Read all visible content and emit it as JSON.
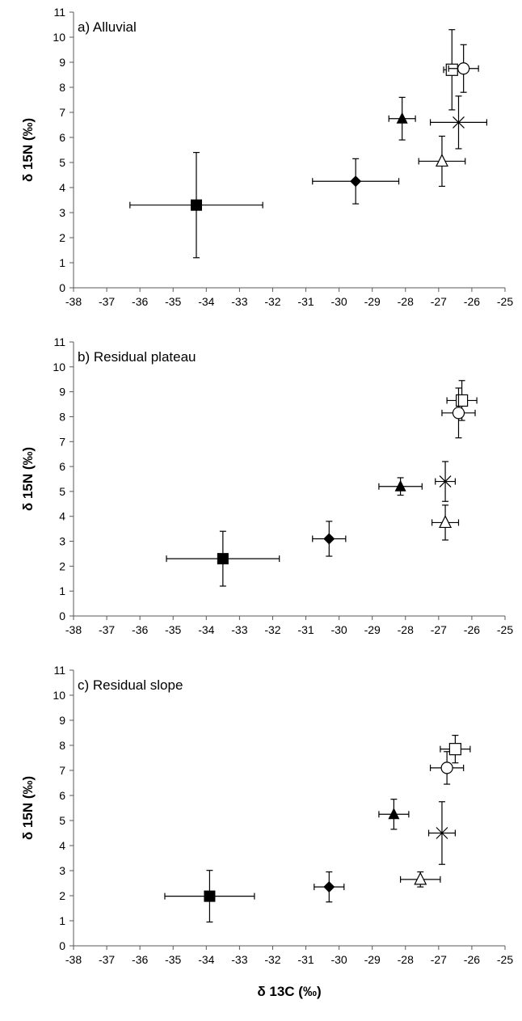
{
  "chart_data": [
    {
      "type": "scatter",
      "title": "a) Alluvial",
      "ylabel": "δ 15N (‰)",
      "xlim": [
        -38,
        -25
      ],
      "ylim": [
        0,
        11
      ],
      "x_ticks": [
        "-38",
        "-37",
        "-36",
        "-35",
        "-34",
        "-33",
        "-32",
        "-31",
        "-30",
        "-29",
        "-28",
        "-27",
        "-26",
        "-25"
      ],
      "y_ticks": [
        "0",
        "1",
        "2",
        "3",
        "4",
        "5",
        "6",
        "7",
        "8",
        "9",
        "10",
        "11"
      ],
      "points": [
        {
          "marker": "filled-square",
          "x": -34.3,
          "y": 3.3,
          "xerr": 2.0,
          "yerr": 2.1
        },
        {
          "marker": "filled-diamond",
          "x": -29.5,
          "y": 4.25,
          "xerr": 1.3,
          "yerr": 0.9
        },
        {
          "marker": "filled-triangle",
          "x": -28.1,
          "y": 6.75,
          "xerr": 0.4,
          "yerr": 0.85
        },
        {
          "marker": "open-triangle",
          "x": -26.9,
          "y": 5.05,
          "xerr": 0.7,
          "yerr": 1.0
        },
        {
          "marker": "cross",
          "x": -26.4,
          "y": 6.6,
          "xerr": 0.85,
          "yerr": 1.05
        },
        {
          "marker": "open-square",
          "x": -26.6,
          "y": 8.7,
          "xerr": 0.25,
          "yerr": 1.6
        },
        {
          "marker": "open-circle",
          "x": -26.25,
          "y": 8.75,
          "xerr": 0.45,
          "yerr": 0.95
        }
      ]
    },
    {
      "type": "scatter",
      "title": "b) Residual plateau",
      "ylabel": "δ 15N (‰)",
      "xlim": [
        -38,
        -25
      ],
      "ylim": [
        0,
        11
      ],
      "x_ticks": [
        "-38",
        "-37",
        "-36",
        "-35",
        "-34",
        "-33",
        "-32",
        "-31",
        "-30",
        "-29",
        "-28",
        "-27",
        "-26",
        "-25"
      ],
      "y_ticks": [
        "0",
        "1",
        "2",
        "3",
        "4",
        "5",
        "6",
        "7",
        "8",
        "9",
        "10",
        "11"
      ],
      "points": [
        {
          "marker": "filled-square",
          "x": -33.5,
          "y": 2.3,
          "xerr": 1.7,
          "yerr": 1.1
        },
        {
          "marker": "filled-diamond",
          "x": -30.3,
          "y": 3.1,
          "xerr": 0.5,
          "yerr": 0.7
        },
        {
          "marker": "filled-triangle",
          "x": -28.15,
          "y": 5.2,
          "xerr": 0.65,
          "yerr": 0.35
        },
        {
          "marker": "open-triangle",
          "x": -26.8,
          "y": 3.75,
          "xerr": 0.4,
          "yerr": 0.7
        },
        {
          "marker": "cross",
          "x": -26.8,
          "y": 5.4,
          "xerr": 0.3,
          "yerr": 0.8
        },
        {
          "marker": "open-square",
          "x": -26.3,
          "y": 8.65,
          "xerr": 0.45,
          "yerr": 0.8
        },
        {
          "marker": "open-circle",
          "x": -26.4,
          "y": 8.15,
          "xerr": 0.5,
          "yerr": 1.0
        }
      ]
    },
    {
      "type": "scatter",
      "title": "c) Residual slope",
      "ylabel": "δ 15N (‰)",
      "xlabel": "δ 13C (‰)",
      "xlim": [
        -38,
        -25
      ],
      "ylim": [
        0,
        11
      ],
      "x_ticks": [
        "-38",
        "-37",
        "-36",
        "-35",
        "-34",
        "-33",
        "-32",
        "-31",
        "-30",
        "-29",
        "-28",
        "-27",
        "-26",
        "-25"
      ],
      "y_ticks": [
        "0",
        "1",
        "2",
        "3",
        "4",
        "5",
        "6",
        "7",
        "8",
        "9",
        "10",
        "11"
      ],
      "points": [
        {
          "marker": "filled-square",
          "x": -33.9,
          "y": 1.98,
          "xerr": 1.35,
          "yerr": 1.03
        },
        {
          "marker": "filled-diamond",
          "x": -30.3,
          "y": 2.35,
          "xerr": 0.45,
          "yerr": 0.6
        },
        {
          "marker": "filled-triangle",
          "x": -28.35,
          "y": 5.25,
          "xerr": 0.45,
          "yerr": 0.6
        },
        {
          "marker": "open-triangle",
          "x": -27.55,
          "y": 2.65,
          "xerr": 0.6,
          "yerr": 0.3
        },
        {
          "marker": "cross",
          "x": -26.9,
          "y": 4.5,
          "xerr": 0.4,
          "yerr": 1.25
        },
        {
          "marker": "open-square",
          "x": -26.5,
          "y": 7.85,
          "xerr": 0.45,
          "yerr": 0.55
        },
        {
          "marker": "open-circle",
          "x": -26.75,
          "y": 7.1,
          "xerr": 0.5,
          "yerr": 0.65
        }
      ]
    }
  ]
}
